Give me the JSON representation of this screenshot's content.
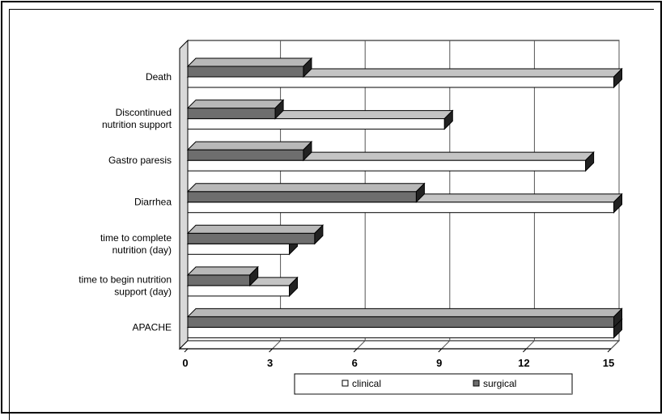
{
  "chart_data": {
    "type": "bar",
    "orientation": "horizontal",
    "categories": [
      "Death",
      "Discontinued\nnutrition support",
      "Gastro paresis",
      "Diarrhea",
      "time to complete\nnutrition (day)",
      "time to begin nutrition\nsupport (day)",
      "APACHE"
    ],
    "series": [
      {
        "name": "surgical",
        "values": [
          4.1,
          3.1,
          4.1,
          8.1,
          4.5,
          2.2,
          15.1
        ]
      },
      {
        "name": "clinical",
        "values": [
          15.1,
          9.1,
          14.1,
          15.1,
          3.6,
          3.6,
          15.1
        ]
      }
    ],
    "xticks": [
      "0",
      "3",
      "6",
      "9",
      "12",
      "15"
    ],
    "xlim": [
      0,
      15
    ],
    "grid": true,
    "legend_position": "bottom",
    "colors": {
      "surgical": "#6e6e6e",
      "clinical": "#ffffff",
      "surgical_top": "#b8b8b8",
      "clinical_top": "#c4c4c4"
    }
  }
}
